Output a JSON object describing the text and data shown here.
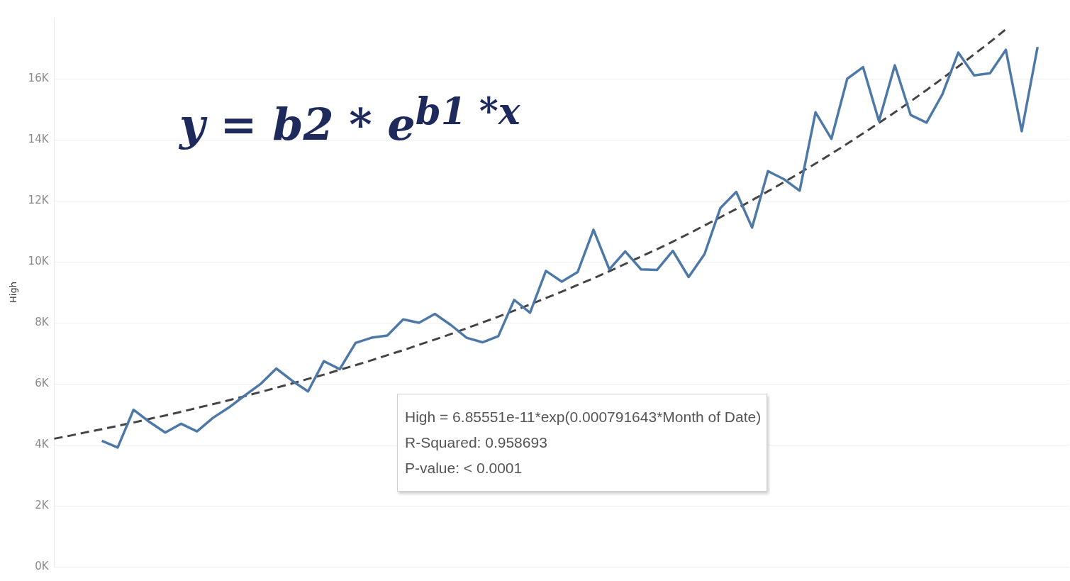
{
  "chart_data": {
    "type": "line",
    "ylabel": "High",
    "categories": [
      null,
      null,
      null,
      null,
      null,
      null,
      null,
      null,
      null,
      null,
      null,
      null,
      null,
      null,
      null,
      null,
      null,
      null,
      null,
      null,
      null,
      null,
      null,
      null,
      null,
      null,
      null,
      null,
      null,
      null,
      null,
      null,
      null,
      null,
      null,
      null,
      null,
      null,
      null,
      null,
      null,
      null,
      null,
      null,
      null,
      null,
      null,
      null,
      null,
      null,
      null,
      null,
      null,
      null,
      null,
      null,
      null,
      null,
      null,
      null,
      null,
      null,
      null,
      null,
      null
    ],
    "ylim": [
      0,
      18000
    ],
    "yticks": [
      {
        "value": 0,
        "label": "0K"
      },
      {
        "value": 2000,
        "label": "2K"
      },
      {
        "value": 4000,
        "label": "4K"
      },
      {
        "value": 6000,
        "label": "6K"
      },
      {
        "value": 8000,
        "label": "8K"
      },
      {
        "value": 10000,
        "label": "10K"
      },
      {
        "value": 12000,
        "label": "12K"
      },
      {
        "value": 14000,
        "label": "14K"
      },
      {
        "value": 16000,
        "label": "16K"
      }
    ],
    "tick_labels": "y",
    "grid": "y",
    "marker": "none",
    "series": [
      {
        "color": "#4e79a7",
        "values": [
          null,
          null,
          null,
          4130,
          3910,
          5150,
          4750,
          4400,
          4690,
          4440,
          4880,
          5220,
          5610,
          5990,
          6500,
          6100,
          5750,
          6740,
          6480,
          7340,
          7510,
          7580,
          8110,
          8000,
          8290,
          7930,
          7510,
          7360,
          7560,
          8750,
          8330,
          9700,
          9350,
          9660,
          11050,
          9750,
          10340,
          9750,
          9730,
          10360,
          9500,
          10250,
          11760,
          12290,
          11120,
          12970,
          12710,
          12330,
          14900,
          14030,
          16000,
          16380,
          14610,
          16440,
          14810,
          14560,
          15490,
          16860,
          16110,
          16180,
          16950,
          14280,
          17040,
          null,
          null
        ]
      },
      {
        "type": "line",
        "line_style": "dashed",
        "color": "#444444",
        "values": [
          4200,
          4300,
          4410,
          4510,
          4620,
          4730,
          4850,
          4960,
          5080,
          5210,
          5330,
          5460,
          5590,
          5730,
          5870,
          6010,
          6160,
          6300,
          6460,
          6610,
          6770,
          6940,
          7100,
          7280,
          7450,
          7630,
          7820,
          8010,
          8200,
          8400,
          8600,
          8810,
          9020,
          9240,
          9460,
          9690,
          9930,
          10170,
          10410,
          10660,
          10920,
          11190,
          11460,
          11730,
          12020,
          12310,
          12610,
          12910,
          13220,
          13540,
          13870,
          14210,
          14550,
          14900,
          15260,
          15630,
          16010,
          16400,
          16800,
          17200,
          17620,
          null,
          null,
          null,
          null
        ]
      }
    ],
    "annotations": [
      "y = b2 * e$^{b1 *x}$",
      "High = 6.85551e-11*exp(0.000791643*Month of Date)",
      "R-Squared: 0.958693",
      "P-value: < 0.0001"
    ]
  }
}
